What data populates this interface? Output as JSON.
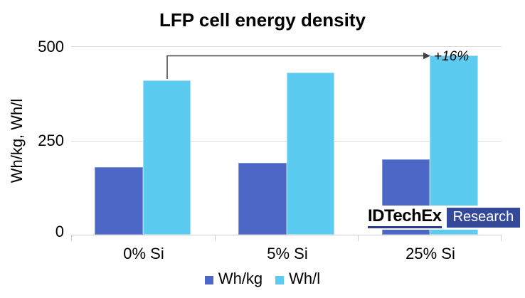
{
  "chart_data": {
    "type": "bar",
    "title": "LFP cell energy density",
    "xlabel": "",
    "ylabel": "Wh/kg, Wh/l",
    "categories": [
      "0% Si",
      "5% Si",
      "25% Si"
    ],
    "series": [
      {
        "name": "Wh/kg",
        "color": "#4C67C6",
        "border_color": "#8296DA",
        "values": [
          180,
          190,
          200
        ]
      },
      {
        "name": "Wh/l",
        "color": "#5CCBF0",
        "border_color": "#A9E2F8",
        "values": [
          410,
          430,
          475
        ]
      }
    ],
    "ylim": [
      0,
      500
    ],
    "yticks": [
      "0",
      "250",
      "500"
    ],
    "grid": "horizontal",
    "legend_position": "bottom",
    "annotation": {
      "text": "+16%",
      "series": "Wh/l",
      "from_category": "0% Si",
      "to_category": "25% Si"
    }
  },
  "logo": {
    "brand": "IDTechEx",
    "suffix": "Research",
    "underline_color": "#2B3990",
    "box_color": "#35499A"
  },
  "colors": {
    "background": "#FFFFFF",
    "grid": "#D9D9D9",
    "axis": "#CFCECE",
    "arrow": "#404040",
    "text": "#000000"
  }
}
